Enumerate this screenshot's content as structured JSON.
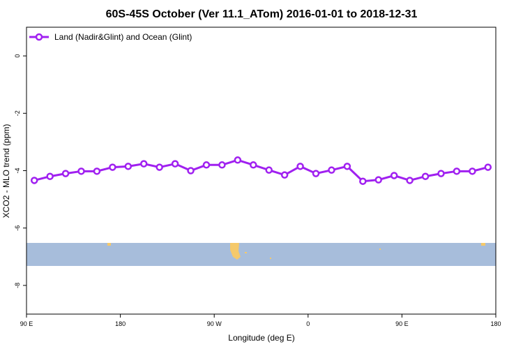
{
  "chart_data": {
    "type": "line",
    "title": "60S-45S October (Ver 11.1_ATom)   2016-01-01 to 2018-12-31",
    "xlabel": "Longitude (deg E)",
    "ylabel": "XCO2 - MLO trend (ppm)",
    "x": [
      97.5,
      112.5,
      127.5,
      142.5,
      157.5,
      172.5,
      187.5,
      202.5,
      217.5,
      232.5,
      247.5,
      262.5,
      277.5,
      292.5,
      307.5,
      322.5,
      337.5,
      352.5,
      367.5,
      382.5,
      397.5,
      412.5,
      427.5,
      442.5,
      457.5,
      472.5,
      487.5,
      502.5,
      517.5,
      532.5
    ],
    "series": [
      {
        "name": "Land (Nadir&Glint) and Ocean (Glint)",
        "color": "#a020f0",
        "values": [
          -4.34,
          -4.2,
          -4.1,
          -4.02,
          -4.02,
          -3.88,
          -3.85,
          -3.76,
          -3.88,
          -3.76,
          -4.0,
          -3.8,
          -3.8,
          -3.63,
          -3.8,
          -3.98,
          -4.15,
          -3.85,
          -4.1,
          -3.98,
          -3.85,
          -4.37,
          -4.32,
          -4.17,
          -4.34,
          -4.2,
          -4.1,
          -4.02,
          -4.02,
          -3.88
        ]
      }
    ],
    "xlim": [
      90,
      540
    ],
    "xticks": [
      {
        "value": 90,
        "label": "90 E"
      },
      {
        "value": 180,
        "label": "180"
      },
      {
        "value": 270,
        "label": "90 W"
      },
      {
        "value": 360,
        "label": "0"
      },
      {
        "value": 450,
        "label": "90 E"
      },
      {
        "value": 540,
        "label": "180"
      }
    ],
    "ylim": [
      -9,
      1
    ],
    "yticks": [
      0,
      -2,
      -4,
      -6,
      -8
    ],
    "legend": "top-left"
  }
}
